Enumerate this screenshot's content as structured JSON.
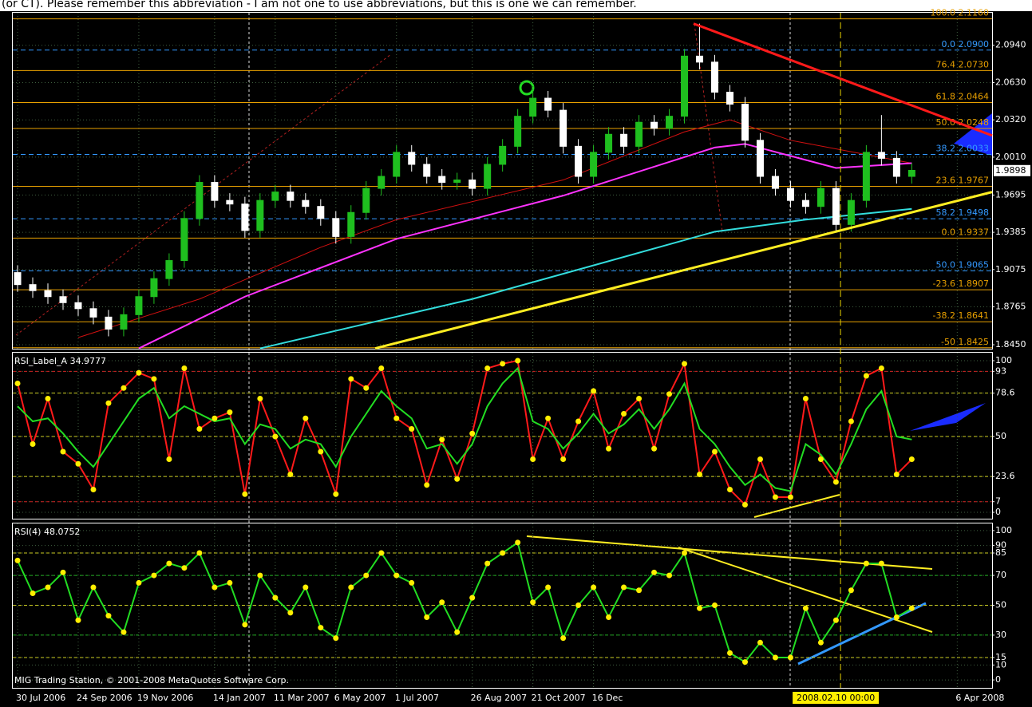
{
  "header_text": "(or CT). Please remember this abbreviation - I am not one to use abbreviations, but this is one we can remember.",
  "footer": "MIG Trading Station, © 2001-2008 MetaQuotes Software Corp.",
  "chart_data": [
    {
      "type": "candlestick",
      "bull_color": "#1fbf1f",
      "bear_color": "#ffffff",
      "xlim": [
        -0.37,
        64.3
      ],
      "xticks": [
        {
          "value": 0,
          "label": "30 Jul 2006"
        },
        {
          "value": 4,
          "label": "24 Sep 2006"
        },
        {
          "value": 8,
          "label": "19 Nov 2006"
        },
        {
          "value": 13,
          "label": "14 Jan 2007"
        },
        {
          "value": 17,
          "label": "11 Mar 2007"
        },
        {
          "value": 21,
          "label": "6 May 2007"
        },
        {
          "value": 25,
          "label": "1 Jul 2007"
        },
        {
          "value": 30,
          "label": "26 Aug 2007"
        },
        {
          "value": 34,
          "label": "21 Oct 2007"
        },
        {
          "value": 38,
          "label": "16 Dec"
        },
        {
          "value": 62,
          "label": "6 Apr 2008"
        }
      ],
      "ylim": [
        1.8417,
        2.1217
      ],
      "yticks": [
        {
          "value": 2.094,
          "label": "2.0940"
        },
        {
          "value": 2.063,
          "label": "2.0630"
        },
        {
          "value": 2.032,
          "label": "2.0320"
        },
        {
          "value": 2.001,
          "label": "2.0010"
        },
        1.9695,
        1.9385,
        1.9075,
        1.8765,
        {
          "value": 1.845,
          "label": "1.8450"
        }
      ],
      "grid": true,
      "open": [
        1.905,
        1.895,
        1.89,
        1.885,
        1.88,
        1.875,
        1.868,
        1.858,
        1.87,
        1.885,
        1.9,
        1.915,
        1.95,
        1.98,
        1.965,
        1.962,
        1.94,
        1.965,
        1.972,
        1.965,
        1.96,
        1.95,
        1.935,
        1.955,
        1.975,
        1.985,
        2.005,
        1.995,
        1.985,
        1.98,
        1.982,
        1.975,
        1.995,
        2.01,
        2.035,
        2.05,
        2.04,
        2.01,
        1.985,
        2.005,
        2.02,
        2.01,
        2.03,
        2.025,
        2.035,
        2.085,
        2.08,
        2.055,
        2.045,
        2.015,
        1.985,
        1.975,
        1.965,
        1.96,
        1.975,
        1.945,
        1.965,
        2.005,
        2.0,
        1.985
      ],
      "high": [
        1.911,
        1.901,
        1.896,
        1.891,
        1.886,
        1.881,
        1.874,
        1.876,
        1.891,
        1.906,
        1.921,
        1.956,
        1.986,
        1.986,
        1.971,
        1.968,
        1.971,
        1.978,
        1.978,
        1.971,
        1.966,
        1.956,
        1.961,
        1.981,
        1.991,
        2.011,
        2.011,
        2.001,
        1.991,
        1.988,
        1.988,
        2.001,
        2.016,
        2.041,
        2.056,
        2.056,
        2.046,
        2.016,
        2.011,
        2.026,
        2.026,
        2.036,
        2.036,
        2.041,
        2.091,
        2.112,
        2.086,
        2.061,
        2.051,
        2.021,
        1.991,
        1.981,
        1.971,
        1.981,
        1.981,
        1.971,
        2.011,
        2.036,
        2.006,
        1.996
      ],
      "low": [
        1.889,
        1.884,
        1.879,
        1.874,
        1.869,
        1.862,
        1.852,
        1.852,
        1.864,
        1.879,
        1.894,
        1.909,
        1.944,
        1.959,
        1.956,
        1.934,
        1.934,
        1.959,
        1.959,
        1.954,
        1.944,
        1.929,
        1.929,
        1.949,
        1.969,
        1.979,
        1.989,
        1.979,
        1.974,
        1.974,
        1.969,
        1.969,
        1.989,
        2.004,
        2.029,
        2.034,
        2.004,
        1.979,
        1.979,
        1.999,
        2.004,
        2.004,
        2.019,
        2.019,
        2.029,
        2.074,
        2.049,
        2.039,
        2.009,
        1.979,
        1.969,
        1.959,
        1.954,
        1.954,
        1.939,
        1.939,
        1.959,
        1.994,
        1.979,
        1.979
      ],
      "close": [
        1.895,
        1.89,
        1.885,
        1.88,
        1.875,
        1.868,
        1.858,
        1.87,
        1.885,
        1.9,
        1.915,
        1.95,
        1.98,
        1.965,
        1.962,
        1.94,
        1.965,
        1.972,
        1.965,
        1.96,
        1.95,
        1.935,
        1.955,
        1.975,
        1.985,
        2.005,
        1.995,
        1.985,
        1.98,
        1.982,
        1.975,
        1.995,
        2.01,
        2.035,
        2.05,
        2.04,
        2.01,
        1.985,
        2.005,
        2.02,
        2.01,
        2.03,
        2.025,
        2.035,
        2.085,
        2.08,
        2.055,
        2.045,
        2.015,
        1.985,
        1.975,
        1.965,
        1.96,
        1.975,
        1.945,
        1.965,
        2.005,
        2.0,
        1.985,
        1.99
      ],
      "lines": [
        {
          "color": "#d01010",
          "x": [
            4,
            12,
            20,
            25,
            36,
            44,
            47,
            51,
            59
          ],
          "values": [
            1.851,
            1.883,
            1.926,
            1.949,
            1.982,
            2.022,
            2.032,
            2.015,
            1.996
          ]
        },
        {
          "color": "#ff33ff",
          "x": [
            8,
            15,
            25,
            36,
            46,
            48,
            54,
            59
          ],
          "values": [
            1.842,
            1.885,
            1.933,
            1.969,
            2.009,
            2.012,
            1.992,
            1.996
          ]
        },
        {
          "color": "#33dddd",
          "x": [
            16,
            30,
            46,
            52,
            59
          ],
          "values": [
            1.842,
            1.883,
            1.939,
            1.949,
            1.958
          ]
        }
      ],
      "trendlines": [
        {
          "color": "#ff1a1a",
          "x": [
            44.6,
            64.3
          ],
          "values": [
            2.112,
            2.019
          ]
        },
        {
          "color": "#ffee22",
          "x": [
            23.6,
            64.3
          ],
          "values": [
            1.842,
            1.972
          ]
        }
      ],
      "levels": [
        {
          "value": 2.116,
          "label": "100.0  2.1160",
          "color": "#e8a000",
          "style": "solid"
        },
        {
          "value": 2.09,
          "label": "0.0  2.0900",
          "color": "#3399ff",
          "style": "dashed"
        },
        {
          "value": 2.073,
          "label": "76.4  2.0730",
          "color": "#e8a000",
          "style": "solid"
        },
        {
          "value": 2.0464,
          "label": "61.8  2.0464",
          "color": "#e8a000",
          "style": "solid"
        },
        {
          "value": 2.0248,
          "label": "50.0  2.0248",
          "color": "#e8a000",
          "style": "solid"
        },
        {
          "value": 2.0033,
          "label": "38.2  2.0033",
          "color": "#3399ff",
          "style": "dashed"
        },
        {
          "value": 1.9767,
          "label": "23.6  1.9767",
          "color": "#e8a000",
          "style": "solid"
        },
        {
          "value": 1.9498,
          "label": "58.2  1.9498",
          "color": "#3399ff",
          "style": "dashed"
        },
        {
          "value": 1.9337,
          "label": "0.0  1.9337",
          "color": "#e8a000",
          "style": "solid"
        },
        {
          "value": 1.9065,
          "label": "50.0  1.9065",
          "color": "#3399ff",
          "style": "dashed"
        },
        {
          "value": 1.8907,
          "label": "-23.6  1.8907",
          "color": "#e8a000",
          "style": "solid"
        },
        {
          "value": 1.8641,
          "label": "-38.2  1.8641",
          "color": "#e8a000",
          "style": "solid"
        },
        {
          "value": 1.8425,
          "label": "-50  1.8425",
          "color": "#e8a000",
          "style": "solid"
        }
      ],
      "last_price": 1.9898,
      "crosshair": {
        "x": 54.3,
        "label": "2008.02.10 00:00"
      }
    },
    {
      "type": "line",
      "title": "RSI_Label_A 34.9777",
      "ylim": [
        -4.2,
        105.8
      ],
      "yticks": [
        0,
        7,
        23.6,
        50,
        78.6,
        93,
        100
      ],
      "grid": true,
      "marker_color": "#ffee00",
      "levels": [
        {
          "value": 93,
          "color": "#cc2222"
        },
        {
          "value": 78.6,
          "color": "#cccc22"
        },
        {
          "value": 50,
          "color": "#cccc22"
        },
        {
          "value": 23.6,
          "color": "#cccc22"
        },
        {
          "value": 7,
          "color": "#cc2222"
        }
      ],
      "series": [
        {
          "color": "#ff1a1a",
          "markers": true,
          "values": [
            85,
            45,
            75,
            40,
            32,
            15,
            72,
            82,
            92,
            88,
            35,
            95,
            55,
            62,
            66,
            12,
            75,
            50,
            25,
            62,
            40,
            12,
            88,
            82,
            95,
            62,
            55,
            18,
            48,
            22,
            52,
            95,
            98,
            100,
            35,
            62,
            35,
            60,
            80,
            42,
            65,
            75,
            42,
            78,
            98,
            25,
            40,
            15,
            5,
            35,
            10,
            10,
            75,
            35,
            20,
            60,
            90,
            95,
            25,
            35
          ]
        },
        {
          "color": "#22dd22",
          "markers": false,
          "values": [
            70,
            60,
            62,
            52,
            40,
            30,
            45,
            60,
            75,
            82,
            62,
            70,
            65,
            60,
            62,
            45,
            58,
            55,
            42,
            48,
            45,
            30,
            50,
            65,
            80,
            70,
            62,
            42,
            45,
            32,
            45,
            70,
            85,
            95,
            60,
            55,
            42,
            52,
            65,
            52,
            58,
            68,
            55,
            68,
            85,
            55,
            45,
            30,
            18,
            25,
            16,
            14,
            45,
            38,
            25,
            45,
            68,
            80,
            50,
            48
          ]
        }
      ]
    },
    {
      "type": "line",
      "title": "RSI(4) 48.0752",
      "ylim": [
        -5.3,
        105.3
      ],
      "yticks": [
        0,
        10,
        15,
        30,
        50,
        70,
        85,
        90,
        100
      ],
      "grid": true,
      "marker_color": "#ffee00",
      "levels": [
        {
          "value": 85,
          "color": "#cccc22"
        },
        {
          "value": 70,
          "color": "#22aa22"
        },
        {
          "value": 50,
          "color": "#cccc22"
        },
        {
          "value": 30,
          "color": "#22aa22"
        },
        {
          "value": 15,
          "color": "#cccc22"
        }
      ],
      "series": [
        {
          "color": "#22dd22",
          "markers": true,
          "values": [
            80,
            58,
            62,
            72,
            40,
            62,
            43,
            32,
            65,
            70,
            78,
            75,
            85,
            62,
            65,
            37,
            70,
            55,
            45,
            62,
            35,
            28,
            62,
            70,
            85,
            70,
            65,
            42,
            52,
            32,
            55,
            78,
            85,
            92,
            52,
            62,
            28,
            50,
            62,
            42,
            62,
            60,
            72,
            70,
            85,
            48,
            50,
            18,
            12,
            25,
            15,
            15,
            48,
            25,
            40,
            60,
            78,
            78,
            42,
            48
          ]
        }
      ]
    }
  ]
}
